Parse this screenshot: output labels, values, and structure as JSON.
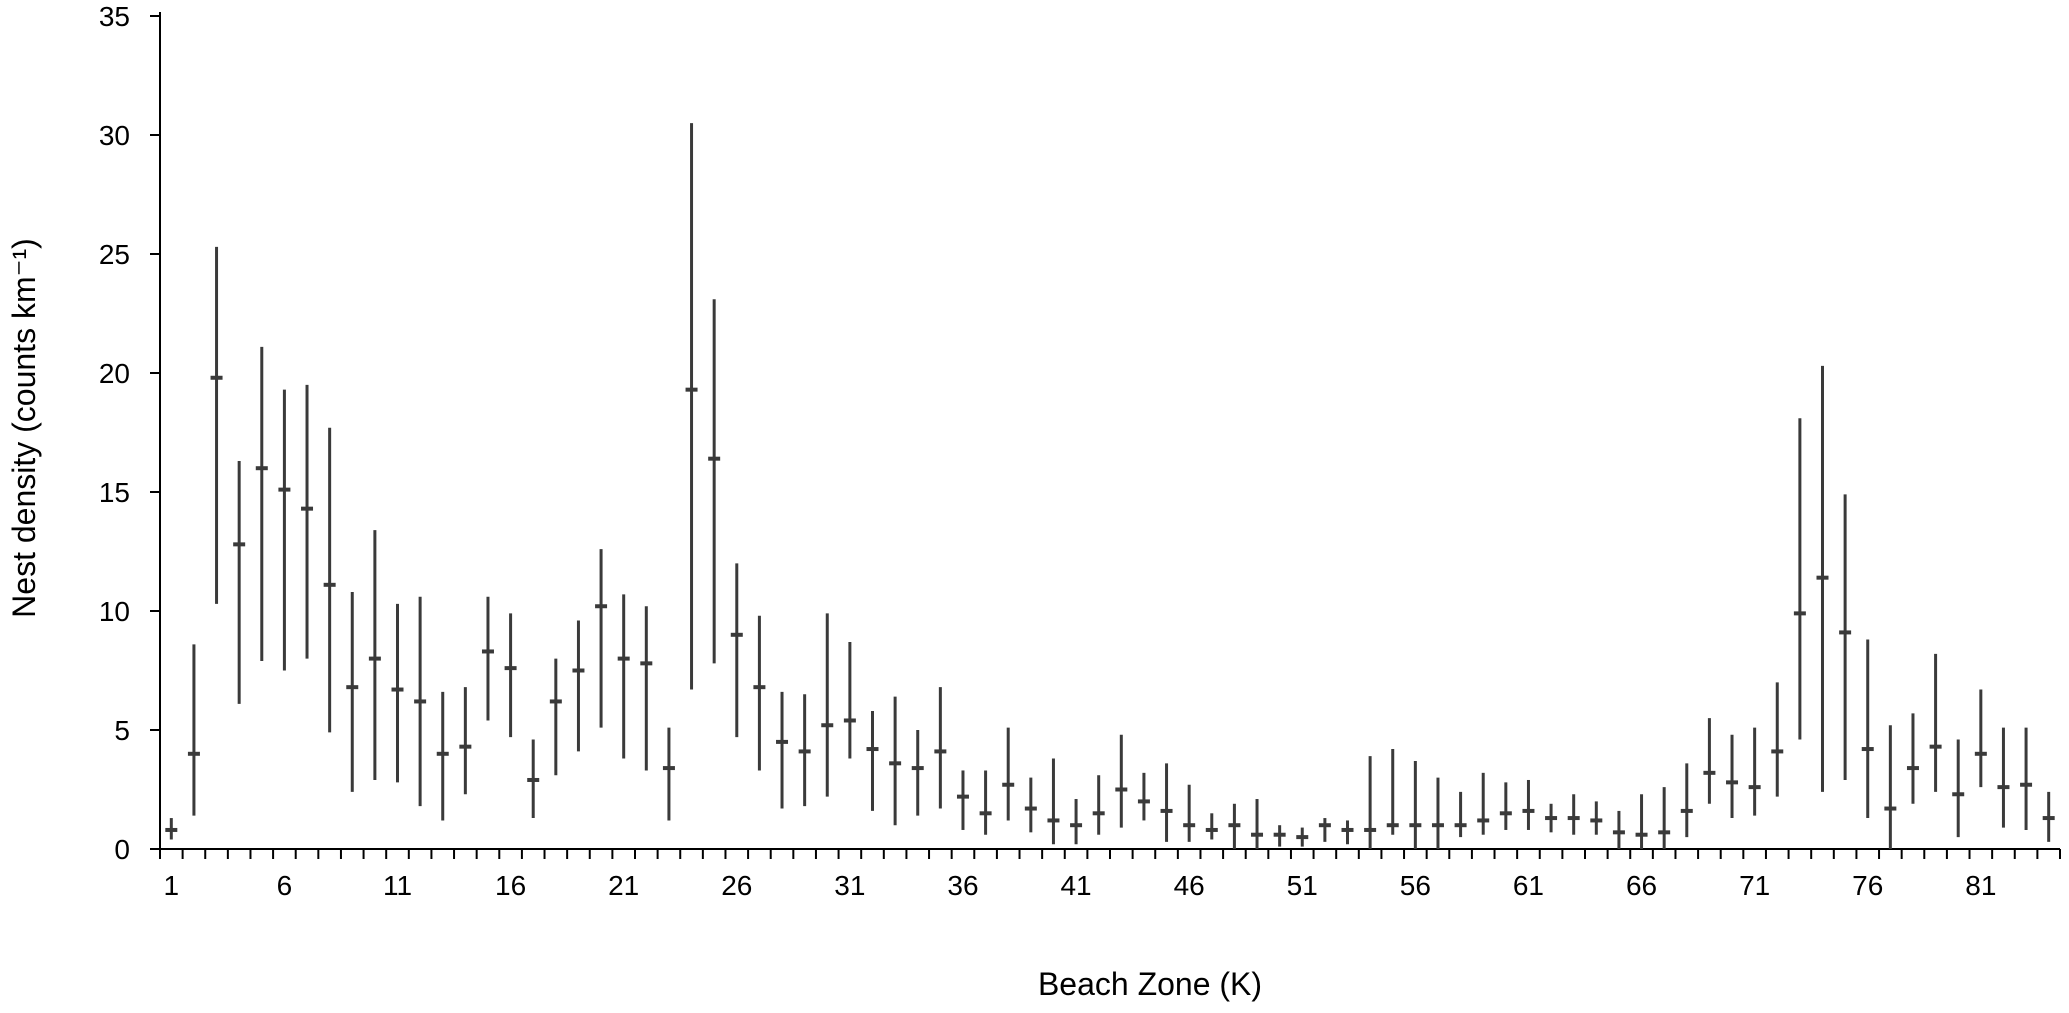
{
  "chart_data": {
    "type": "errorbar",
    "title": "",
    "xlabel": "Beach Zone (K)",
    "ylabel": "Nest density (counts km⁻¹)",
    "ylim": [
      0,
      35
    ],
    "yticks": [
      0,
      5,
      10,
      15,
      20,
      25,
      30,
      35
    ],
    "xlim": [
      1,
      84
    ],
    "xticks": [
      1,
      6,
      11,
      16,
      21,
      26,
      31,
      36,
      41,
      46,
      51,
      56,
      61,
      66,
      71,
      76,
      81
    ],
    "grid": false,
    "legend": "none",
    "colors": {
      "series": "#3a3a3a",
      "axis": "#000000"
    },
    "series": [
      {
        "x": [
          1,
          2,
          3,
          4,
          5,
          6,
          7,
          8,
          9,
          10,
          11,
          12,
          13,
          14,
          15,
          16,
          17,
          18,
          19,
          20,
          21,
          22,
          23,
          24,
          25,
          26,
          27,
          28,
          29,
          30,
          31,
          32,
          33,
          34,
          35,
          36,
          37,
          38,
          39,
          40,
          41,
          42,
          43,
          44,
          45,
          46,
          47,
          48,
          49,
          50,
          51,
          52,
          53,
          54,
          55,
          56,
          57,
          58,
          59,
          60,
          61,
          62,
          63,
          64,
          65,
          66,
          67,
          68,
          69,
          70,
          71,
          72,
          73,
          74,
          75,
          76,
          77,
          78,
          79,
          80,
          81,
          82,
          83,
          84
        ],
        "mean": [
          0.8,
          4.0,
          19.8,
          12.8,
          16.0,
          15.1,
          14.3,
          11.1,
          6.8,
          8.0,
          6.7,
          6.2,
          4.0,
          4.3,
          8.3,
          7.6,
          2.9,
          6.2,
          7.5,
          10.2,
          8.0,
          7.8,
          3.4,
          19.3,
          16.4,
          9.0,
          6.8,
          4.5,
          4.1,
          5.2,
          5.4,
          4.2,
          3.6,
          3.4,
          4.1,
          2.2,
          1.5,
          2.7,
          1.7,
          1.2,
          1.0,
          1.5,
          2.5,
          2.0,
          1.6,
          1.0,
          0.8,
          1.0,
          0.6,
          0.6,
          0.5,
          1.0,
          0.8,
          0.8,
          1.0,
          1.0,
          1.0,
          1.0,
          1.2,
          1.5,
          1.6,
          1.3,
          1.3,
          1.2,
          0.7,
          0.6,
          0.7,
          1.6,
          3.2,
          2.8,
          2.6,
          4.1,
          9.9,
          11.4,
          9.1,
          4.2,
          1.7,
          3.4,
          4.3,
          2.3,
          4.0,
          2.6,
          2.7,
          1.3
        ],
        "lower": [
          0.4,
          1.4,
          10.3,
          6.1,
          7.9,
          7.5,
          8.0,
          4.9,
          2.4,
          2.9,
          2.8,
          1.8,
          1.2,
          2.3,
          5.4,
          4.7,
          1.3,
          3.1,
          4.1,
          5.1,
          3.8,
          3.3,
          1.2,
          6.7,
          7.8,
          4.7,
          3.3,
          1.7,
          1.8,
          2.2,
          3.8,
          1.6,
          1.0,
          1.4,
          1.7,
          0.8,
          0.6,
          1.2,
          0.7,
          0.2,
          0.2,
          0.6,
          0.9,
          1.2,
          0.3,
          0.3,
          0.4,
          0.0,
          0.0,
          0.1,
          0.1,
          0.3,
          0.2,
          0.0,
          0.6,
          0.0,
          0.0,
          0.5,
          0.6,
          0.8,
          0.8,
          0.7,
          0.6,
          0.6,
          0.0,
          0.0,
          0.0,
          0.5,
          1.9,
          1.3,
          1.4,
          2.2,
          4.6,
          2.4,
          2.9,
          1.3,
          0.0,
          1.9,
          2.4,
          0.5,
          2.6,
          0.9,
          0.8,
          0.3
        ],
        "upper": [
          1.3,
          8.6,
          25.3,
          16.3,
          21.1,
          19.3,
          19.5,
          17.7,
          10.8,
          13.4,
          10.3,
          10.6,
          6.6,
          6.8,
          10.6,
          9.9,
          4.6,
          8.0,
          9.6,
          12.6,
          10.7,
          10.2,
          5.1,
          30.5,
          23.1,
          12.0,
          9.8,
          6.6,
          6.5,
          9.9,
          8.7,
          5.8,
          6.4,
          5.0,
          6.8,
          3.3,
          3.3,
          5.1,
          3.0,
          3.8,
          2.1,
          3.1,
          4.8,
          3.2,
          3.6,
          2.7,
          1.5,
          1.9,
          2.1,
          1.0,
          0.9,
          1.3,
          1.2,
          3.9,
          4.2,
          3.7,
          3.0,
          2.4,
          3.2,
          2.8,
          2.9,
          1.9,
          2.3,
          2.0,
          1.6,
          2.3,
          2.6,
          3.6,
          5.5,
          4.8,
          5.1,
          7.0,
          18.1,
          20.3,
          14.9,
          8.8,
          5.2,
          5.7,
          8.2,
          4.6,
          6.7,
          5.1,
          5.1,
          2.4
        ]
      }
    ]
  }
}
